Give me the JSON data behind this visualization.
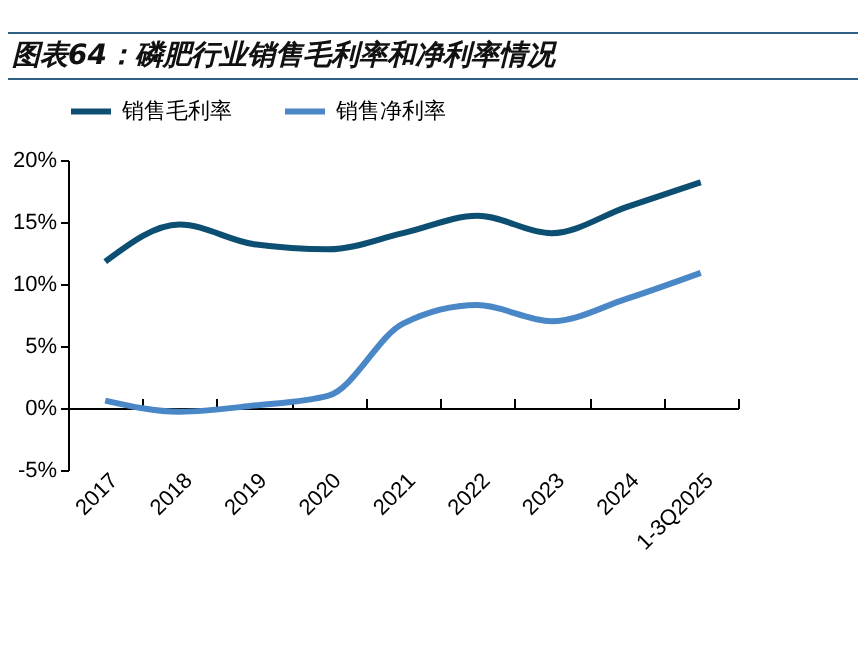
{
  "chart_data": {
    "type": "line",
    "title": "图表64：磷肥行业销售毛利率和净利率情况",
    "categories": [
      "2017",
      "2018",
      "2019",
      "2020",
      "2021",
      "2022",
      "2023",
      "2024",
      "1-3Q2025"
    ],
    "series": [
      {
        "name": "销售毛利率",
        "color": "#0d4f73",
        "values": [
          11.8,
          14.8,
          13.2,
          12.8,
          14.1,
          15.5,
          14.1,
          16.2,
          18.2
        ]
      },
      {
        "name": "销售净利率",
        "color": "#4a87c7",
        "values": [
          0.6,
          -0.3,
          0.2,
          1.0,
          6.8,
          8.3,
          7.0,
          8.8,
          10.9
        ]
      }
    ],
    "ylim": [
      -5,
      20
    ],
    "yticks": [
      {
        "value": -5,
        "label": "-5%"
      },
      {
        "value": 0,
        "label": "0%"
      },
      {
        "value": 5,
        "label": "5%"
      },
      {
        "value": 10,
        "label": "10%"
      },
      {
        "value": 15,
        "label": "15%"
      },
      {
        "value": 20,
        "label": "20%"
      }
    ],
    "legend": "top",
    "marker": "none",
    "line_style": "solid"
  }
}
